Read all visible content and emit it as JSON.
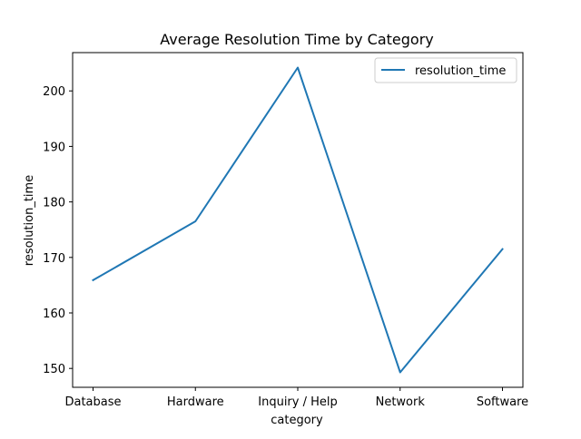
{
  "chart_data": {
    "type": "line",
    "title": "Average Resolution Time by Category",
    "xlabel": "category",
    "ylabel": "resolution_time",
    "categories": [
      "Database",
      "Hardware",
      "Inquiry / Help",
      "Network",
      "Software"
    ],
    "series": [
      {
        "name": "resolution_time",
        "values": [
          165.9,
          176.5,
          204.2,
          149.3,
          171.5
        ],
        "color": "#1f77b4"
      }
    ],
    "ylim": [
      146.6,
      206.9
    ],
    "yticks": [
      150,
      160,
      170,
      180,
      190,
      200
    ],
    "grid": false,
    "legend_position": "top-right"
  }
}
